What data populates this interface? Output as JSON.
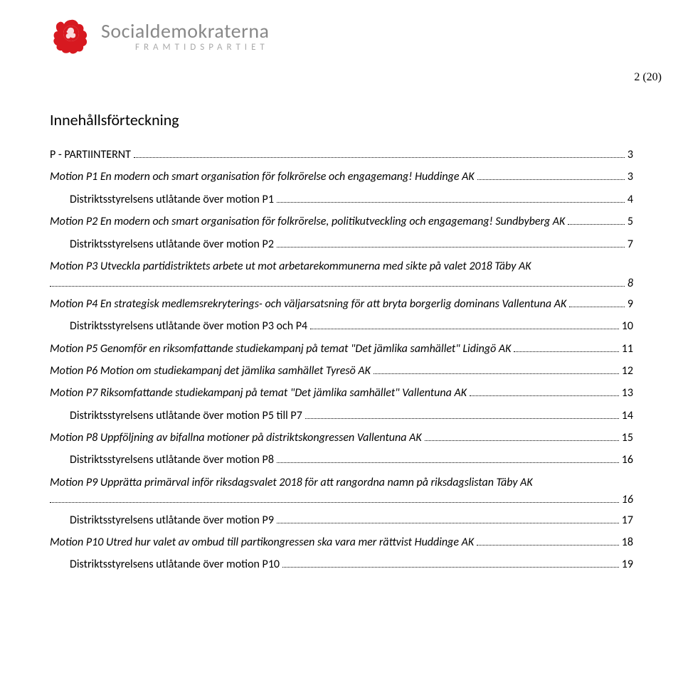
{
  "header": {
    "logo_main": "Socialdemokraterna",
    "logo_sub": "FRAMTIDSPARTIET",
    "logo_color": "#d71920"
  },
  "page_number": "2 (20)",
  "toc_title": "Innehållsförteckning",
  "entries": [
    {
      "label": "P - PARTIINTERNT",
      "page": "3",
      "italic": false,
      "indent": false
    },
    {
      "label": "Motion P1 En modern och smart organisation för folkrörelse och engagemang! Huddinge AK",
      "page": "3",
      "italic": true,
      "indent": false
    },
    {
      "label": "Distriktsstyrelsens utlåtande över motion P1",
      "page": "4",
      "italic": false,
      "indent": true
    },
    {
      "label": "Motion P2 En modern och smart organisation för folkrörelse, politikutveckling och engagemang! Sundbyberg AK",
      "page": "5",
      "italic": true,
      "indent": false
    },
    {
      "label": "Distriktsstyrelsens utlåtande över motion P2",
      "page": "7",
      "italic": false,
      "indent": true
    },
    {
      "label": "Motion P3 Utveckla partidistriktets arbete ut mot arbetarekommunerna med sikte på valet 2018 Täby AK",
      "page": "8",
      "italic": true,
      "indent": false,
      "continuation": true
    },
    {
      "label": "Motion P4 En strategisk medlemsrekryterings- och väljarsatsning för att bryta borgerlig dominans Vallentuna AK",
      "page": "9",
      "italic": true,
      "indent": false
    },
    {
      "label": "Distriktsstyrelsens utlåtande över motion P3 och P4",
      "page": "10",
      "italic": false,
      "indent": true
    },
    {
      "label": "Motion P5 Genomför en riksomfattande studiekampanj på temat \"Det jämlika samhället\" Lidingö AK",
      "page": "11",
      "italic": true,
      "indent": false
    },
    {
      "label": "Motion P6 Motion om studiekampanj det jämlika samhället Tyresö AK",
      "page": "12",
      "italic": true,
      "indent": false
    },
    {
      "label": "Motion P7 Riksomfattande studiekampanj på temat \"Det jämlika samhället\" Vallentuna AK",
      "page": "13",
      "italic": true,
      "indent": false
    },
    {
      "label": "Distriktsstyrelsens utlåtande över motion P5 till P7",
      "page": "14",
      "italic": false,
      "indent": true
    },
    {
      "label": "Motion P8 Uppföljning av bifallna motioner på distriktskongressen Vallentuna AK",
      "page": "15",
      "italic": true,
      "indent": false
    },
    {
      "label": "Distriktsstyrelsens utlåtande över motion P8",
      "page": "16",
      "italic": false,
      "indent": true
    },
    {
      "label": "Motion P9 Upprätta primärval inför riksdagsvalet 2018 för att rangordna namn på riksdagslistan Täby AK",
      "page": "16",
      "italic": true,
      "indent": false,
      "continuation": true
    },
    {
      "label": "Distriktsstyrelsens utlåtande över motion P9",
      "page": "17",
      "italic": false,
      "indent": true
    },
    {
      "label": "Motion P10 Utred hur valet av ombud till partikongressen ska vara mer rättvist Huddinge AK",
      "page": "18",
      "italic": true,
      "indent": false
    },
    {
      "label": "Distriktsstyrelsens utlåtande över motion P10",
      "page": "19",
      "italic": false,
      "indent": true
    }
  ]
}
